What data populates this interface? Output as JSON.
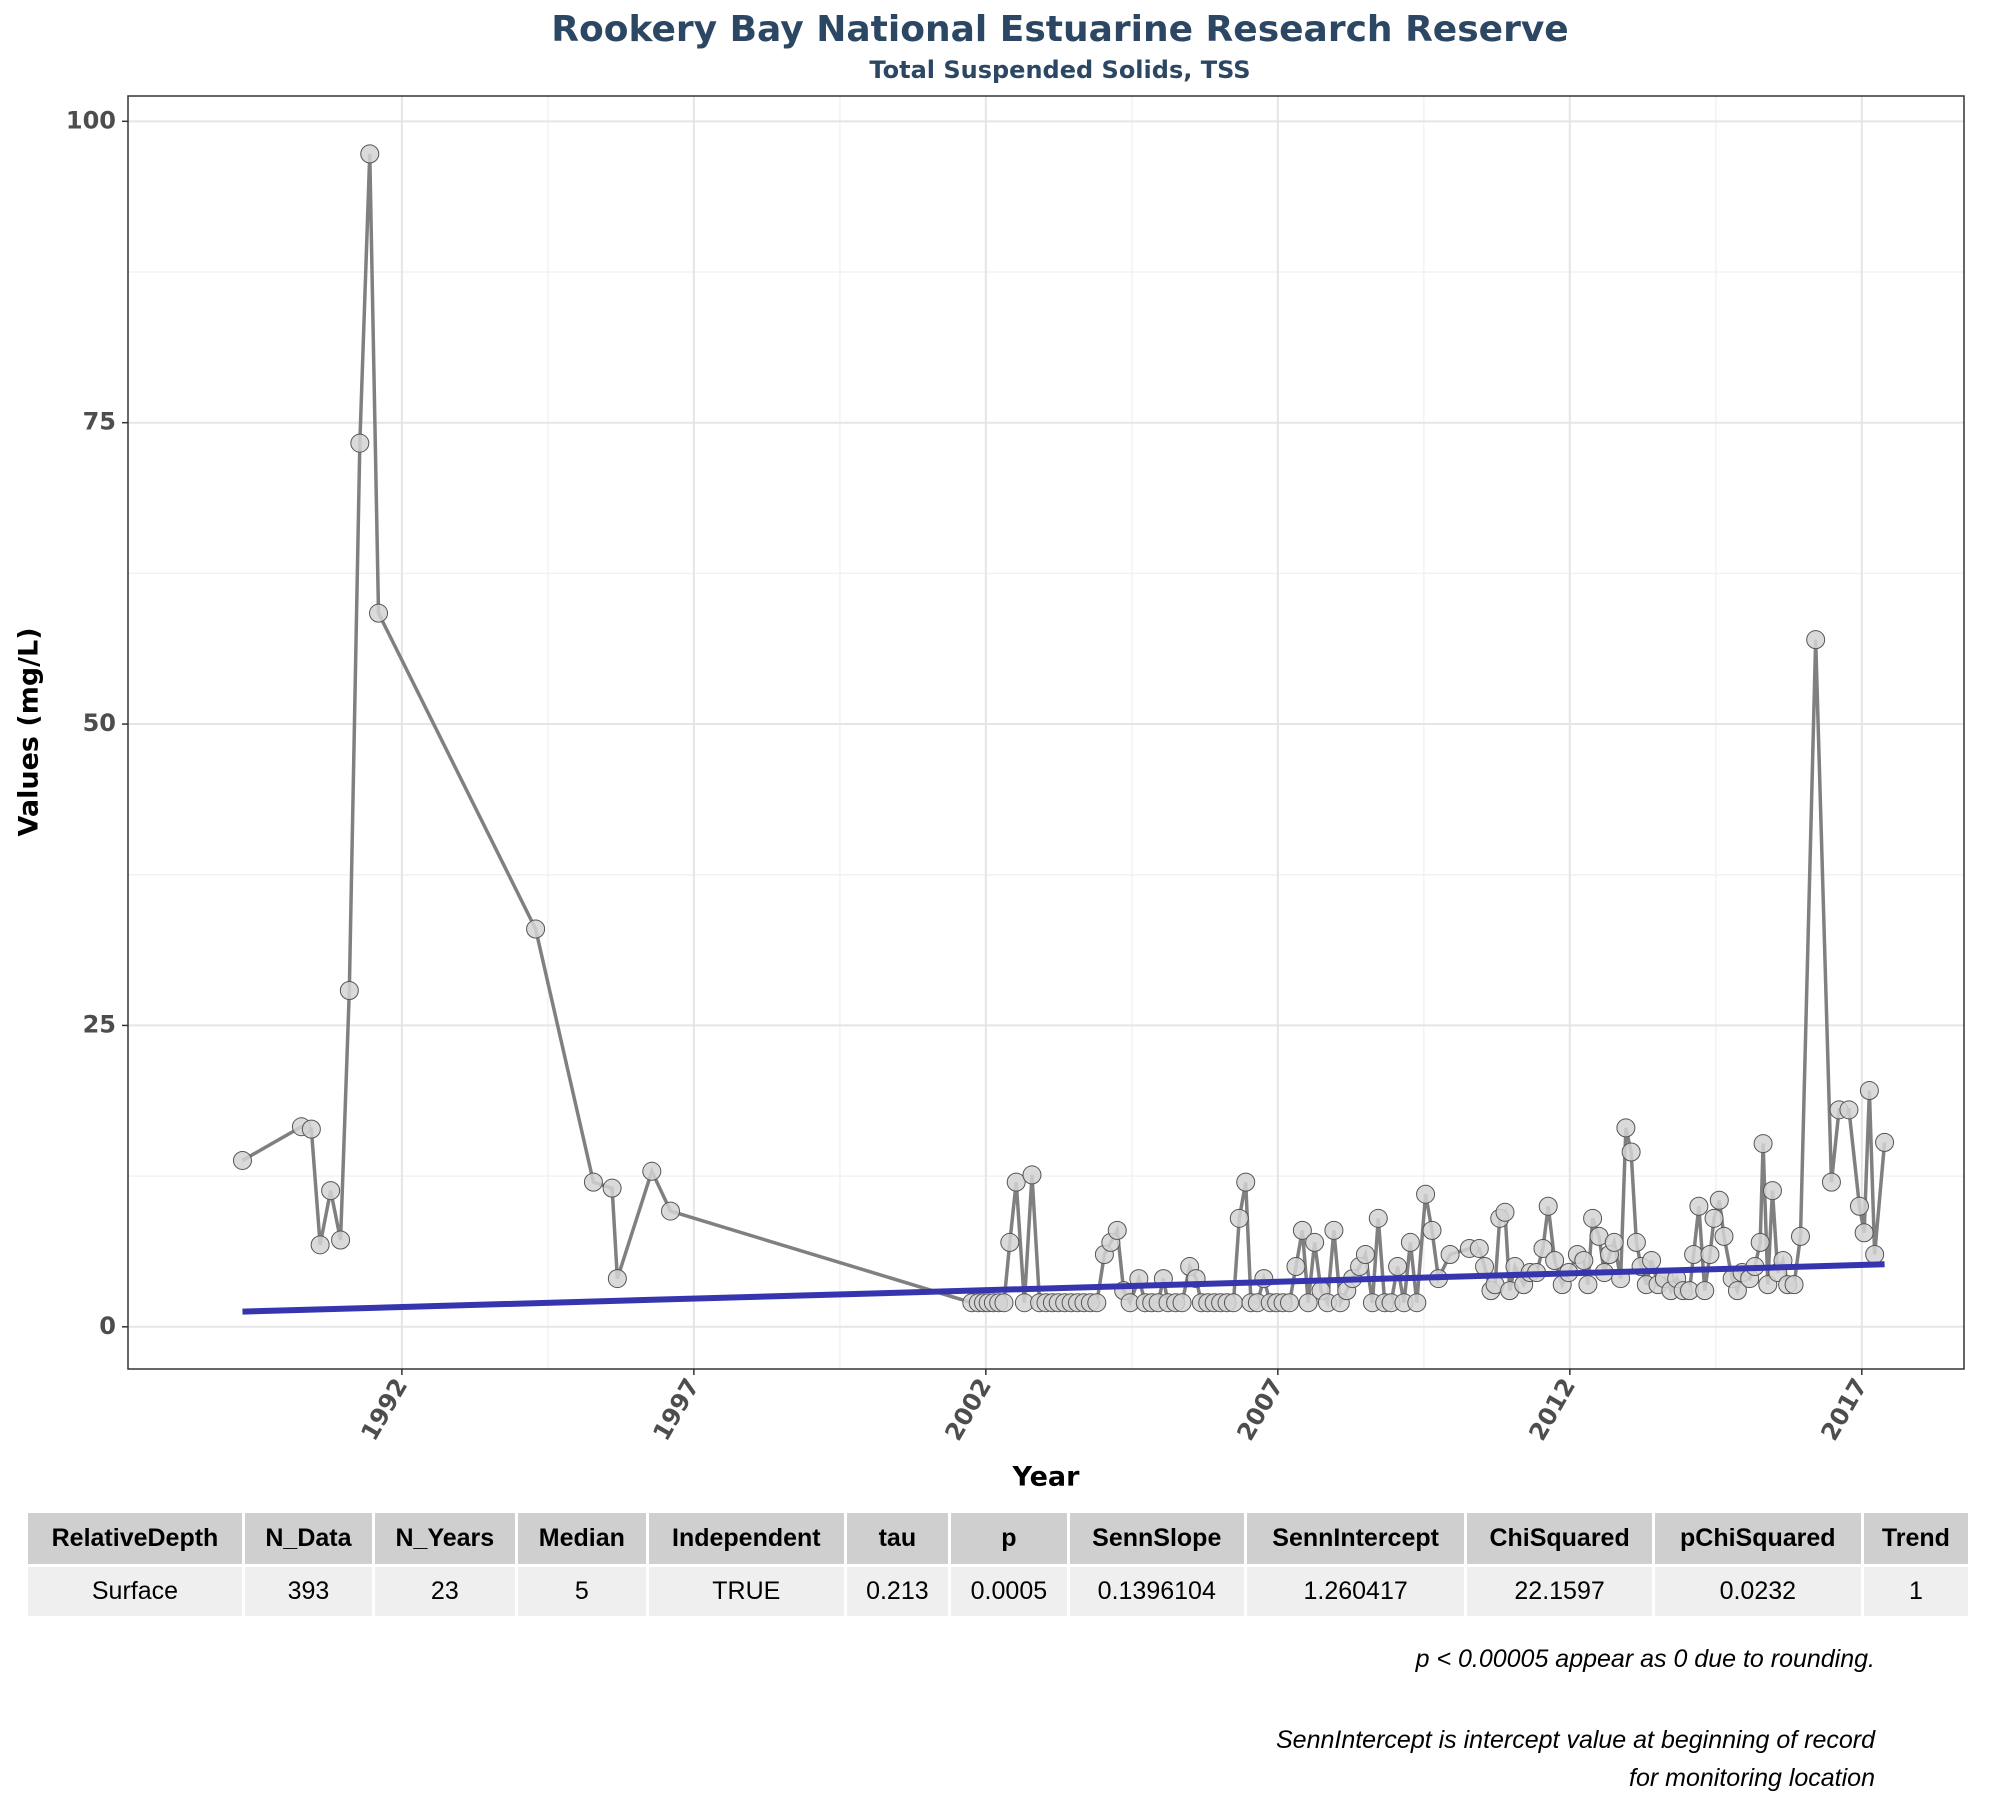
{
  "chart_data": {
    "type": "line",
    "title": "Rookery Bay National Estuarine Research Reserve",
    "subtitle": "Total Suspended Solids, TSS",
    "x_label": "Year",
    "y_label": "Values (mg/L)",
    "xlim": [
      1987.31,
      2018.75
    ],
    "ylim": [
      -3.5,
      102.1
    ],
    "xticks": [
      1992,
      1997,
      2002,
      2007,
      2012,
      2017
    ],
    "yticks": [
      0,
      25,
      50,
      75,
      100
    ],
    "grid": true,
    "line_color": "#808080",
    "point_color": "#d3d3d3",
    "trend_color": "#3535b0",
    "x": [
      1989.27,
      1990.28,
      1990.45,
      1990.6,
      1990.78,
      1990.95,
      1991.1,
      1991.28,
      1991.45,
      1991.6,
      1994.29,
      1995.28,
      1995.6,
      1995.69,
      1996.28,
      1996.6,
      2001.76,
      2001.87,
      2001.96,
      2002.04,
      2002.13,
      2002.22,
      2002.31,
      2002.41,
      2002.52,
      2002.66,
      2002.79,
      2002.92,
      2003.03,
      2003.14,
      2003.24,
      2003.35,
      2003.46,
      2003.57,
      2003.68,
      2003.79,
      2003.9,
      2004.03,
      2004.14,
      2004.25,
      2004.36,
      2004.47,
      2004.62,
      2004.73,
      2004.84,
      2004.95,
      2005.04,
      2005.12,
      2005.25,
      2005.36,
      2005.49,
      2005.6,
      2005.69,
      2005.8,
      2005.91,
      2006.02,
      2006.13,
      2006.24,
      2006.34,
      2006.45,
      2006.54,
      2006.65,
      2006.76,
      2006.87,
      2006.98,
      2007.09,
      2007.2,
      2007.31,
      2007.42,
      2007.52,
      2007.63,
      2007.74,
      2007.85,
      2007.96,
      2008.07,
      2008.18,
      2008.28,
      2008.4,
      2008.5,
      2008.62,
      2008.72,
      2008.83,
      2008.94,
      2009.05,
      2009.16,
      2009.27,
      2009.38,
      2009.53,
      2009.64,
      2009.75,
      2009.95,
      2010.28,
      2010.45,
      2010.54,
      2010.65,
      2010.72,
      2010.8,
      2010.89,
      2010.97,
      2011.06,
      2011.21,
      2011.32,
      2011.43,
      2011.54,
      2011.63,
      2011.74,
      2011.87,
      2011.98,
      2012.13,
      2012.24,
      2012.31,
      2012.39,
      2012.5,
      2012.59,
      2012.68,
      2012.76,
      2012.87,
      2012.96,
      2013.05,
      2013.14,
      2013.22,
      2013.31,
      2013.4,
      2013.51,
      2013.62,
      2013.73,
      2013.83,
      2013.94,
      2014.05,
      2014.12,
      2014.21,
      2014.31,
      2014.4,
      2014.47,
      2014.56,
      2014.64,
      2014.78,
      2014.87,
      2014.95,
      2015.08,
      2015.17,
      2015.26,
      2015.31,
      2015.39,
      2015.47,
      2015.56,
      2015.65,
      2015.73,
      2015.84,
      2015.95,
      2016.21,
      2016.48,
      2016.61,
      2016.78,
      2016.96,
      2017.04,
      2017.13,
      2017.22,
      2017.39
    ],
    "values": [
      13.8,
      16.6,
      16.4,
      6.8,
      11.3,
      7.2,
      27.9,
      73.3,
      97.3,
      59.2,
      33,
      12,
      11.5,
      4,
      12.9,
      9.6,
      2,
      2,
      2,
      2,
      2,
      2,
      2,
      7,
      12,
      2,
      12.6,
      2,
      2,
      2,
      2,
      2,
      2,
      2,
      2,
      2,
      2,
      6,
      7,
      8,
      3,
      2,
      4,
      2,
      2,
      2,
      4,
      2,
      2,
      2,
      5,
      4,
      2,
      2,
      2,
      2,
      2,
      2,
      9,
      12,
      2,
      2,
      4,
      2,
      2,
      2,
      2,
      5,
      8,
      2,
      7,
      3,
      2,
      8,
      2,
      3,
      4,
      5,
      6,
      2,
      9,
      2,
      2,
      5,
      2,
      7,
      2,
      11,
      8,
      4,
      6,
      6.5,
      6.5,
      5,
      3,
      3.5,
      9,
      9.5,
      3,
      5,
      3.5,
      4.5,
      4.5,
      6.5,
      10,
      5.5,
      3.5,
      4.5,
      6,
      5.5,
      3.5,
      9,
      7.5,
      4.5,
      6,
      7,
      4,
      16.5,
      14.5,
      7,
      5,
      3.5,
      5.5,
      3.5,
      4,
      3,
      4,
      3,
      3,
      6,
      10,
      3,
      6,
      9,
      10.5,
      7.5,
      4,
      3,
      4.5,
      4,
      5,
      7,
      15.2,
      3.5,
      11.3,
      4.5,
      5.5,
      3.5,
      3.5,
      7.5,
      57,
      12,
      18,
      18,
      10,
      7.8,
      19.6,
      6,
      15.3
    ]
  },
  "table": {
    "header": [
      "RelativeDepth",
      "N_Data",
      "N_Years",
      "Median",
      "Independent",
      "tau",
      "p",
      "SennSlope",
      "SennIntercept",
      "ChiSquared",
      "pChiSquared",
      "Trend"
    ],
    "rows": [
      [
        "Surface",
        393,
        23,
        5,
        "TRUE",
        0.213,
        0.0005,
        0.1396104,
        1.260417,
        22.1597,
        0.0232,
        1
      ]
    ]
  },
  "notes": [
    "p < 0.00005 appear as 0 due to rounding.",
    "SennIntercept is intercept value at beginning of record for monitoring location"
  ]
}
